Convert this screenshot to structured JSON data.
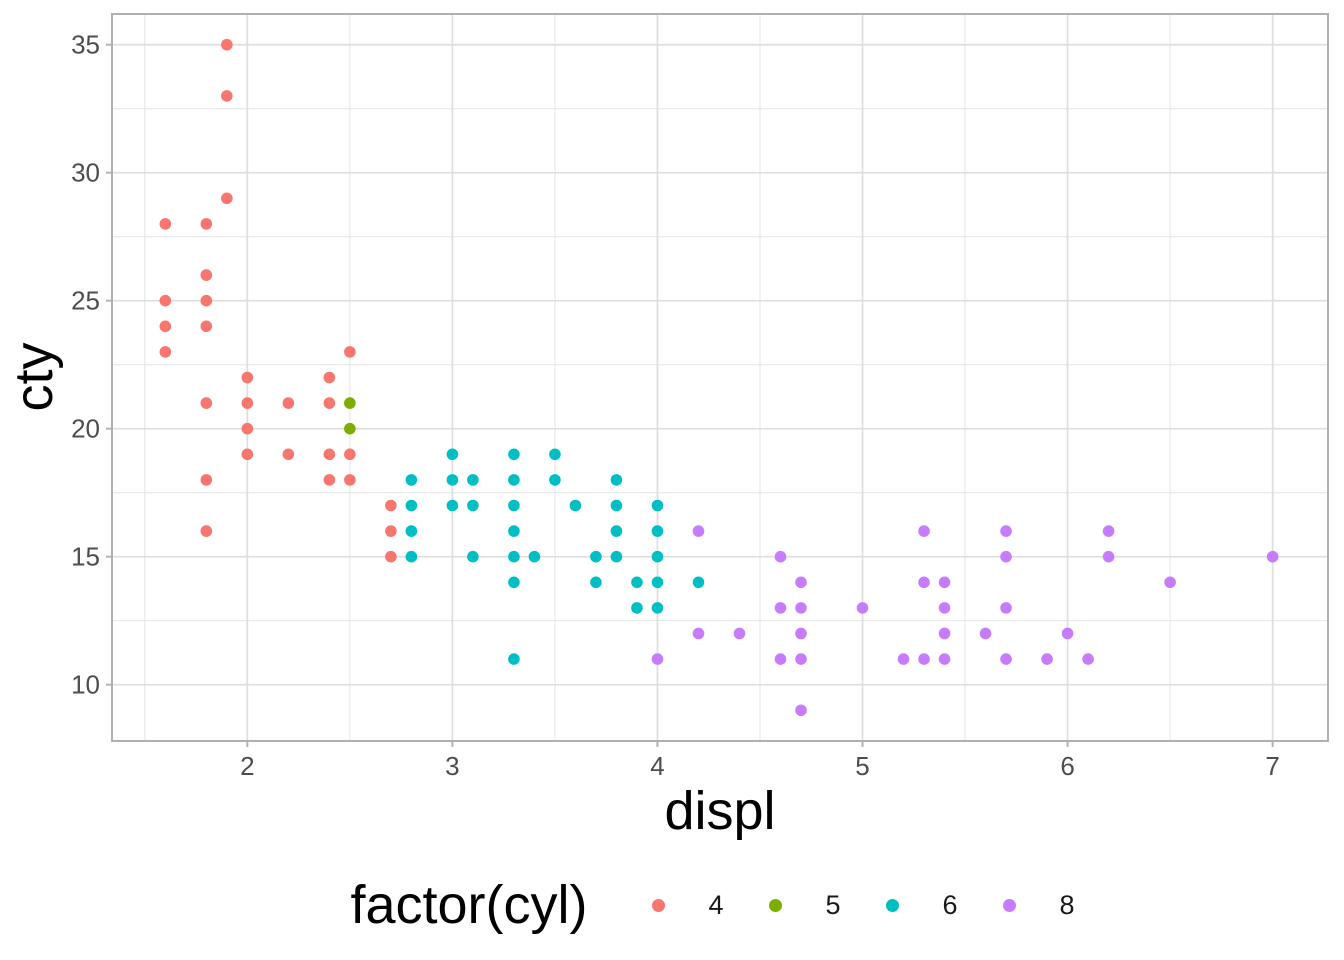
{
  "chart_data": {
    "type": "scatter",
    "title": "",
    "xlabel": "displ",
    "ylabel": "cty",
    "legend_title": "factor(cyl)",
    "legend_position": "bottom",
    "grid": true,
    "xlim": [
      1.34,
      7.27
    ],
    "ylim": [
      7.8,
      36.2
    ],
    "x_ticks": [
      2,
      3,
      4,
      5,
      6,
      7
    ],
    "y_ticks": [
      10,
      15,
      20,
      25,
      30,
      35
    ],
    "x_minor": [
      1.5,
      2.5,
      3.5,
      4.5,
      5.5,
      6.5
    ],
    "y_minor": [
      12.5,
      17.5,
      22.5,
      27.5,
      32.5
    ],
    "colors": {
      "background": "#FFFFFF",
      "panel_border": "#B0B0B0",
      "grid_major": "#DEDEDE",
      "grid_minor": "#E4E4E4",
      "tick_mark": "#B3B3B3",
      "axis_text": "#4D4D4D",
      "title_text": "#000000"
    },
    "series": [
      {
        "name": "4",
        "color": "#F8766D",
        "points": [
          [
            1.6,
            23
          ],
          [
            1.6,
            24
          ],
          [
            1.6,
            25
          ],
          [
            1.6,
            28
          ],
          [
            1.8,
            16
          ],
          [
            1.8,
            18
          ],
          [
            1.8,
            21
          ],
          [
            1.8,
            24
          ],
          [
            1.8,
            25
          ],
          [
            1.8,
            26
          ],
          [
            1.8,
            28
          ],
          [
            1.9,
            29
          ],
          [
            1.9,
            33
          ],
          [
            1.9,
            35
          ],
          [
            2.0,
            19
          ],
          [
            2.0,
            20
          ],
          [
            2.0,
            21
          ],
          [
            2.0,
            22
          ],
          [
            2.2,
            19
          ],
          [
            2.2,
            21
          ],
          [
            2.4,
            18
          ],
          [
            2.4,
            19
          ],
          [
            2.4,
            21
          ],
          [
            2.4,
            22
          ],
          [
            2.5,
            18
          ],
          [
            2.5,
            19
          ],
          [
            2.5,
            23
          ],
          [
            2.7,
            15
          ],
          [
            2.7,
            16
          ],
          [
            2.7,
            17
          ]
        ]
      },
      {
        "name": "5",
        "color": "#7CAE00",
        "points": [
          [
            2.5,
            20
          ],
          [
            2.5,
            21
          ]
        ]
      },
      {
        "name": "6",
        "color": "#00BFC4",
        "points": [
          [
            2.8,
            15
          ],
          [
            2.8,
            16
          ],
          [
            2.8,
            17
          ],
          [
            2.8,
            18
          ],
          [
            3.0,
            17
          ],
          [
            3.0,
            18
          ],
          [
            3.0,
            19
          ],
          [
            3.1,
            15
          ],
          [
            3.1,
            17
          ],
          [
            3.1,
            18
          ],
          [
            3.3,
            11
          ],
          [
            3.3,
            14
          ],
          [
            3.3,
            15
          ],
          [
            3.3,
            16
          ],
          [
            3.3,
            17
          ],
          [
            3.3,
            18
          ],
          [
            3.3,
            19
          ],
          [
            3.4,
            15
          ],
          [
            3.5,
            18
          ],
          [
            3.5,
            19
          ],
          [
            3.6,
            17
          ],
          [
            3.7,
            14
          ],
          [
            3.7,
            15
          ],
          [
            3.8,
            15
          ],
          [
            3.8,
            16
          ],
          [
            3.8,
            17
          ],
          [
            3.8,
            18
          ],
          [
            3.9,
            13
          ],
          [
            3.9,
            14
          ],
          [
            4.0,
            13
          ],
          [
            4.0,
            14
          ],
          [
            4.0,
            15
          ],
          [
            4.0,
            16
          ],
          [
            4.0,
            17
          ],
          [
            4.2,
            14
          ]
        ]
      },
      {
        "name": "8",
        "color": "#C77CFF",
        "points": [
          [
            4.0,
            11
          ],
          [
            4.2,
            12
          ],
          [
            4.2,
            16
          ],
          [
            4.4,
            12
          ],
          [
            4.6,
            11
          ],
          [
            4.6,
            13
          ],
          [
            4.6,
            15
          ],
          [
            4.7,
            9
          ],
          [
            4.7,
            11
          ],
          [
            4.7,
            12
          ],
          [
            4.7,
            13
          ],
          [
            4.7,
            14
          ],
          [
            5.0,
            13
          ],
          [
            5.2,
            11
          ],
          [
            5.3,
            11
          ],
          [
            5.3,
            14
          ],
          [
            5.3,
            16
          ],
          [
            5.4,
            11
          ],
          [
            5.4,
            12
          ],
          [
            5.4,
            13
          ],
          [
            5.4,
            14
          ],
          [
            5.6,
            12
          ],
          [
            5.7,
            11
          ],
          [
            5.7,
            13
          ],
          [
            5.7,
            15
          ],
          [
            5.7,
            16
          ],
          [
            5.9,
            11
          ],
          [
            6.0,
            12
          ],
          [
            6.1,
            11
          ],
          [
            6.2,
            15
          ],
          [
            6.2,
            16
          ],
          [
            6.5,
            14
          ],
          [
            7.0,
            15
          ]
        ]
      }
    ]
  }
}
